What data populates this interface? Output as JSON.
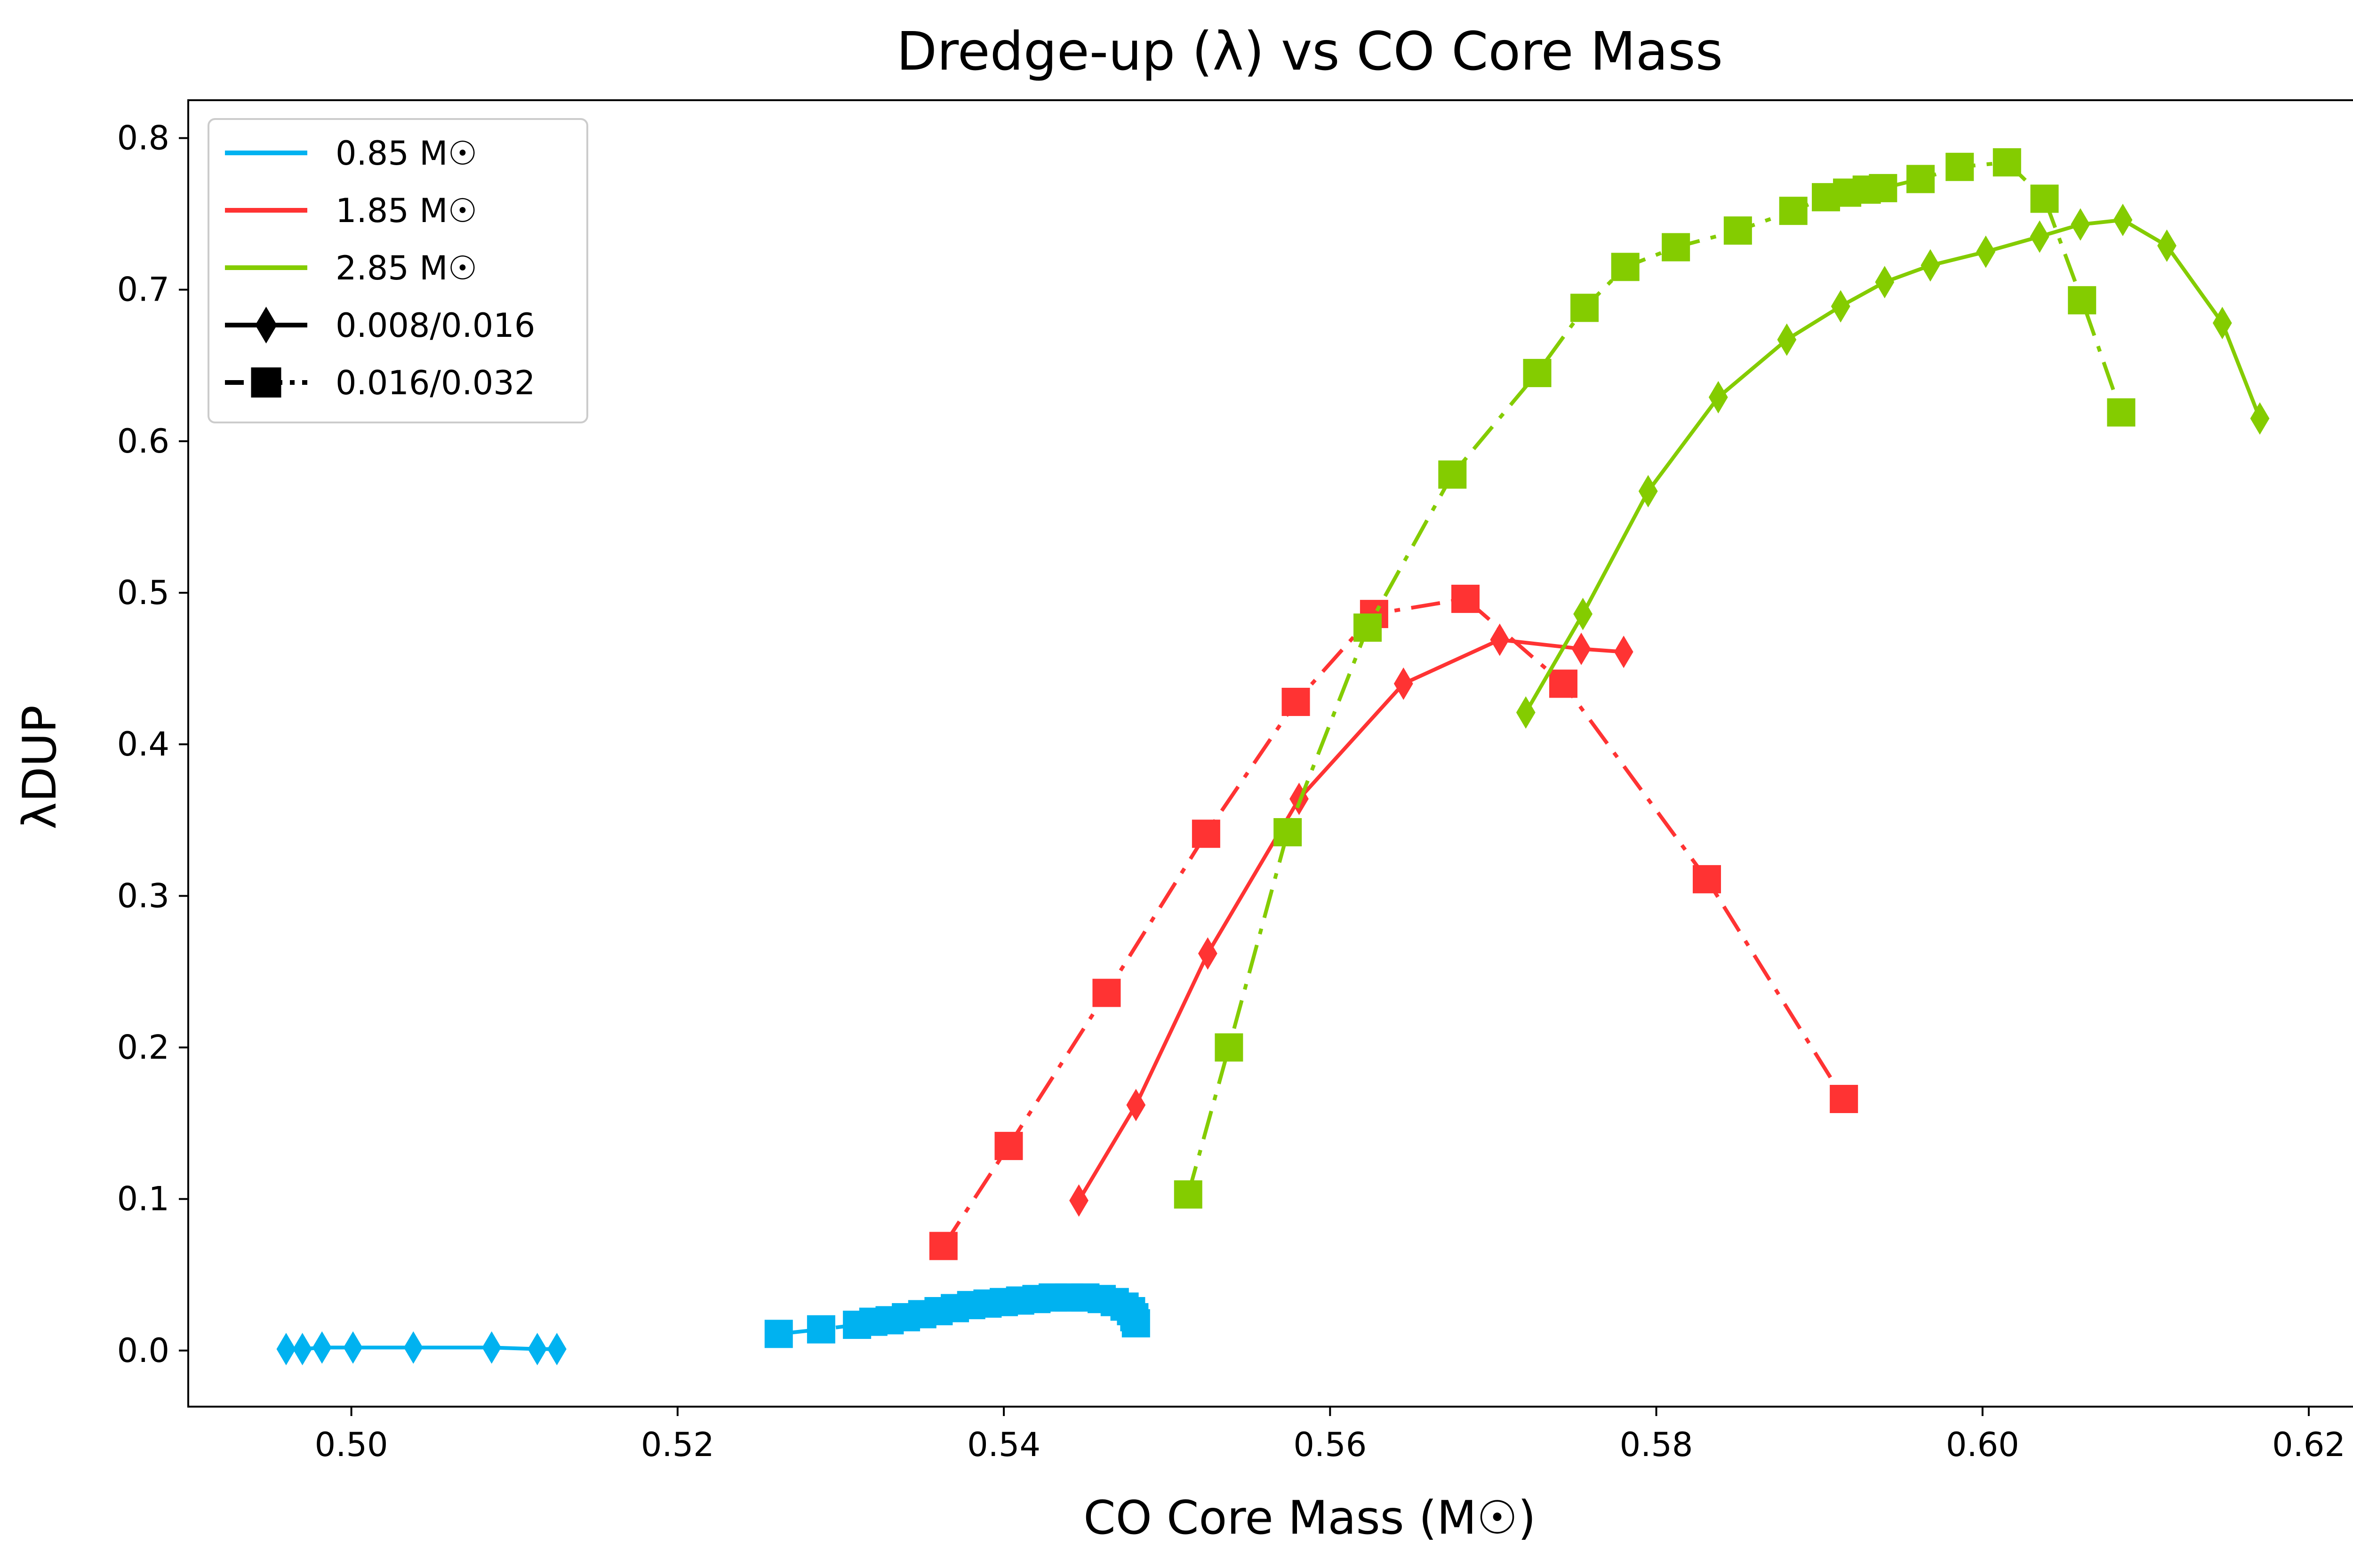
{
  "chart_data": {
    "type": "line",
    "title": "Dredge-up (λ) vs CO Core Mass",
    "xlabel": "CO Core Mass (M☉)",
    "ylabel": "λDUP",
    "xlim": [
      0.49,
      0.623
    ],
    "ylim": [
      -0.037,
      0.825
    ],
    "x_ticks": [
      0.5,
      0.52,
      0.54,
      0.56,
      0.58,
      0.6,
      0.62
    ],
    "y_ticks": [
      0.0,
      0.1,
      0.2,
      0.3,
      0.4,
      0.5,
      0.6,
      0.7,
      0.8
    ],
    "x_tick_labels": [
      "0.50",
      "0.52",
      "0.54",
      "0.56",
      "0.58",
      "0.60",
      "0.62"
    ],
    "y_tick_labels": [
      "0.0",
      "0.1",
      "0.2",
      "0.3",
      "0.4",
      "0.5",
      "0.6",
      "0.7",
      "0.8"
    ],
    "grid": false,
    "legend_position": "top-left",
    "legend": [
      {
        "label": "0.85 M☉",
        "kind": "color",
        "color": "#00b2f0"
      },
      {
        "label": "1.85 M☉",
        "kind": "color",
        "color": "#ff3333"
      },
      {
        "label": "2.85 M☉",
        "kind": "color",
        "color": "#84cc00"
      },
      {
        "label": "0.008/0.016",
        "kind": "marker",
        "marker": "diamond",
        "line": "solid"
      },
      {
        "label": "0.016/0.032",
        "kind": "marker",
        "marker": "square",
        "line": "dashdot"
      }
    ],
    "series": [
      {
        "mass": "0.85 M☉",
        "Z": "0.008/0.016",
        "color": "#00b2f0",
        "marker": "diamond",
        "line": "solid",
        "x": [
          0.496,
          0.497,
          0.4982,
          0.5001,
          0.5038,
          0.5086,
          0.5114,
          0.5126
        ],
        "y": [
          0.001,
          0.001,
          0.002,
          0.002,
          0.002,
          0.002,
          0.001,
          0.001
        ]
      },
      {
        "mass": "0.85 M☉",
        "Z": "0.016/0.032",
        "color": "#00b2f0",
        "marker": "square",
        "line": "dashdot",
        "x": [
          0.5262,
          0.5288,
          0.531,
          0.532,
          0.533,
          0.534,
          0.535,
          0.536,
          0.537,
          0.538,
          0.539,
          0.54,
          0.541,
          0.542,
          0.543,
          0.544,
          0.545,
          0.546,
          0.5468,
          0.5474,
          0.5478,
          0.548,
          0.5481
        ],
        "y": [
          0.011,
          0.014,
          0.017,
          0.019,
          0.02,
          0.022,
          0.024,
          0.026,
          0.028,
          0.03,
          0.031,
          0.032,
          0.033,
          0.034,
          0.035,
          0.035,
          0.035,
          0.034,
          0.032,
          0.029,
          0.026,
          0.022,
          0.018
        ]
      },
      {
        "mass": "1.85 M☉",
        "Z": "0.008/0.016",
        "color": "#ff3333",
        "marker": "diamond",
        "line": "solid",
        "x": [
          0.5446,
          0.5481,
          0.5525,
          0.5581,
          0.5645,
          0.5704,
          0.5754,
          0.578
        ],
        "y": [
          0.099,
          0.162,
          0.262,
          0.364,
          0.44,
          0.469,
          0.463,
          0.461
        ]
      },
      {
        "mass": "1.85 M☉",
        "Z": "0.016/0.032",
        "color": "#ff3333",
        "marker": "square",
        "line": "dashdot",
        "x": [
          0.5363,
          0.5403,
          0.5463,
          0.5524,
          0.5579,
          0.5627,
          0.5683,
          0.5743,
          0.5831,
          0.5915
        ],
        "y": [
          0.069,
          0.135,
          0.236,
          0.341,
          0.428,
          0.486,
          0.496,
          0.44,
          0.311,
          0.166
        ]
      },
      {
        "mass": "2.85 M☉",
        "Z": "0.008/0.016",
        "color": "#84cc00",
        "marker": "diamond",
        "line": "solid",
        "x": [
          0.572,
          0.5755,
          0.5795,
          0.5838,
          0.588,
          0.5913,
          0.594,
          0.5968,
          0.6002,
          0.6035,
          0.606,
          0.6086,
          0.6113,
          0.6147,
          0.617
        ],
        "y": [
          0.421,
          0.486,
          0.567,
          0.629,
          0.667,
          0.689,
          0.705,
          0.716,
          0.725,
          0.735,
          0.743,
          0.746,
          0.729,
          0.678,
          0.615
        ]
      },
      {
        "mass": "2.85 M☉",
        "Z": "0.016/0.032",
        "color": "#84cc00",
        "marker": "square",
        "line": "dashdot",
        "x": [
          0.5513,
          0.5538,
          0.5574,
          0.5623,
          0.5675,
          0.5727,
          0.5756,
          0.5781,
          0.5812,
          0.585,
          0.5884,
          0.5904,
          0.5917,
          0.5929,
          0.5939,
          0.5962,
          0.5986,
          0.6015,
          0.6038,
          0.6061,
          0.6085
        ],
        "y": [
          0.103,
          0.2,
          0.342,
          0.477,
          0.578,
          0.645,
          0.688,
          0.715,
          0.728,
          0.739,
          0.752,
          0.761,
          0.764,
          0.766,
          0.767,
          0.773,
          0.781,
          0.784,
          0.76,
          0.693,
          0.619
        ]
      }
    ]
  }
}
